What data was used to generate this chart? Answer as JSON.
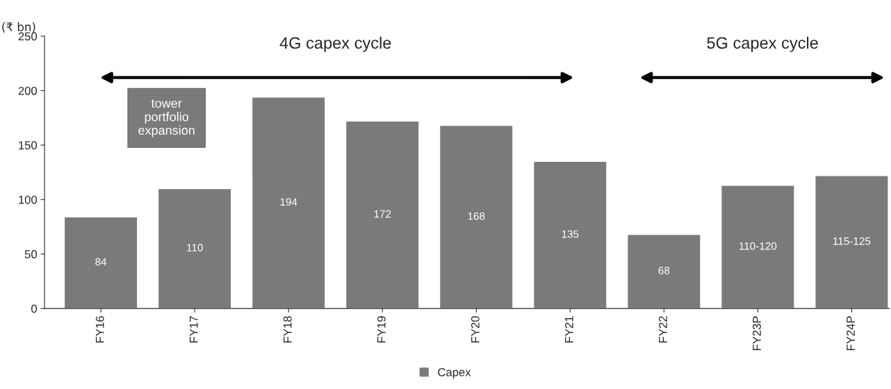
{
  "chart_data": {
    "type": "bar",
    "ylabel": "(₹ bn)",
    "categories": [
      "FY16",
      "FY17",
      "FY18",
      "FY19",
      "FY20",
      "FY21",
      "FY22",
      "FY23P",
      "FY24P"
    ],
    "series": [
      {
        "name": "Capex",
        "color": "#7a7a7a",
        "values": [
          84,
          110,
          194,
          172,
          168,
          135,
          68,
          113,
          122
        ],
        "value_labels": [
          "84",
          "110",
          "194",
          "172",
          "168",
          "135",
          "68",
          "110-120",
          "115-125"
        ]
      }
    ],
    "ylim": [
      0,
      250
    ],
    "yticks": [
      0,
      50,
      100,
      150,
      200,
      250
    ],
    "grid": false,
    "legend": "bottom",
    "annotations": [
      "4G capex cycle",
      "5G capex cycle",
      "tower portfolio expansion"
    ]
  }
}
